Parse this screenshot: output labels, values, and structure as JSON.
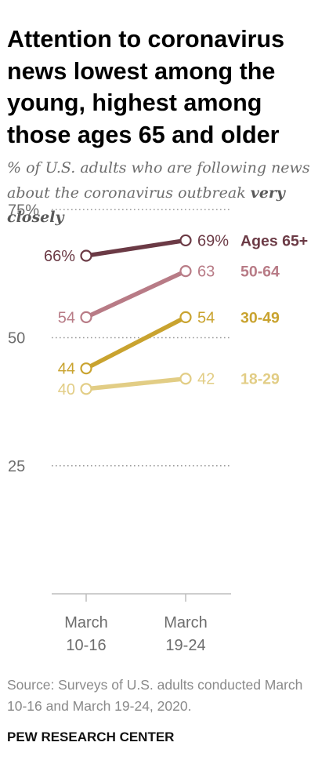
{
  "title": "Attention to coronavirus news lowest among the young, highest among those ages 65 and older",
  "subtitle": {
    "text": "% of U.S. adults who are following news about the coronavirus outbreak",
    "emphasis": "very closely"
  },
  "chart_data": {
    "type": "line",
    "categories": [
      "March 10-16",
      "March 19-24"
    ],
    "x_tick_labels": [
      [
        "March",
        "10-16"
      ],
      [
        "March",
        "19-24"
      ]
    ],
    "y_ticks": [
      {
        "value": 75,
        "label": "75%"
      },
      {
        "value": 50,
        "label": "50"
      },
      {
        "value": 25,
        "label": "25"
      }
    ],
    "ylim": [
      0,
      75
    ],
    "grid": true,
    "legend": "right-of-lines",
    "series": [
      {
        "name": "Ages 65+",
        "values": [
          66,
          69
        ],
        "labels": [
          "66%",
          "69%"
        ],
        "color": "#6b3a45"
      },
      {
        "name": "50-64",
        "values": [
          54,
          63
        ],
        "labels": [
          "54",
          "63"
        ],
        "color": "#b87b86"
      },
      {
        "name": "30-49",
        "values": [
          44,
          54
        ],
        "labels": [
          "44",
          "54"
        ],
        "color": "#c9a32f"
      },
      {
        "name": "18-29",
        "values": [
          40,
          42
        ],
        "labels": [
          "40",
          "42"
        ],
        "color": "#e2cd85"
      }
    ]
  },
  "source": "Source: Surveys of U.S. adults conducted March 10-16 and March 19-24, 2020.",
  "organization": "PEW RESEARCH CENTER"
}
